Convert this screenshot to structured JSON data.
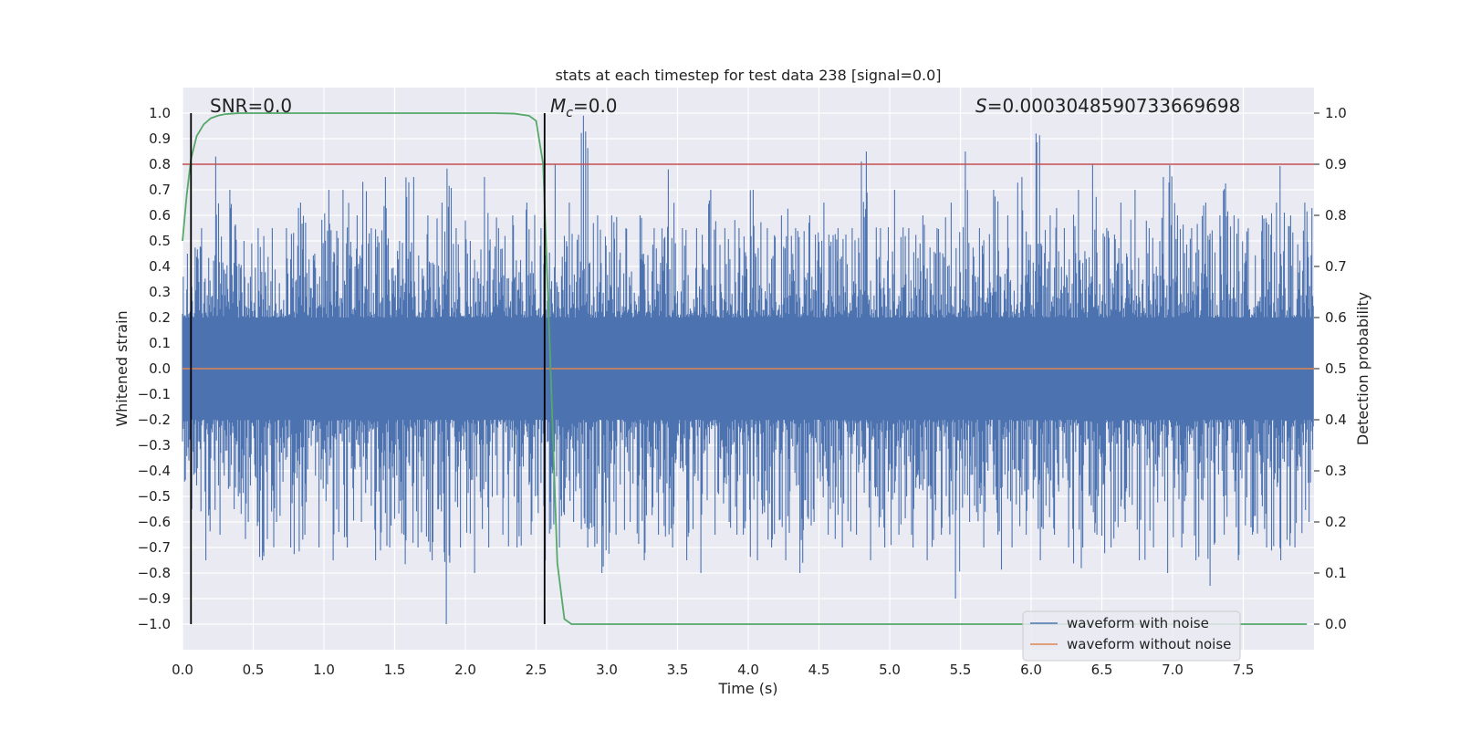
{
  "chart_data": {
    "type": "line",
    "title": "stats at each timestep for test data 238 [signal=0.0]",
    "xlabel": "Time (s)",
    "ylabel": "Whitened strain",
    "y2label": "Detection probability",
    "xlim": [
      0.0,
      8.0
    ],
    "ylim": [
      -1.1,
      1.1
    ],
    "y2lim": [
      -0.05,
      1.05
    ],
    "xticks": [
      0.0,
      0.5,
      1.0,
      1.5,
      2.0,
      2.5,
      3.0,
      3.5,
      4.0,
      4.5,
      5.0,
      5.5,
      6.0,
      6.5,
      7.0,
      7.5
    ],
    "xtick_labels": [
      "0.0",
      "0.5",
      "1.0",
      "1.5",
      "2.0",
      "2.5",
      "3.0",
      "3.5",
      "4.0",
      "4.5",
      "5.0",
      "5.5",
      "6.0",
      "6.5",
      "7.0",
      "7.5"
    ],
    "yticks": [
      1.0,
      0.9,
      0.8,
      0.7,
      0.6,
      0.5,
      0.4,
      0.3,
      0.2,
      0.1,
      0.0,
      -0.1,
      -0.2,
      -0.3,
      -0.4,
      -0.5,
      -0.6,
      -0.7,
      -0.8,
      -0.9,
      -1.0
    ],
    "ytick_labels": [
      "1.0",
      "0.9",
      "0.8",
      "0.7",
      "0.6",
      "0.5",
      "0.4",
      "0.3",
      "0.2",
      "0.1",
      "0.0",
      "−0.1",
      "−0.2",
      "−0.3",
      "−0.4",
      "−0.5",
      "−0.6",
      "−0.7",
      "−0.8",
      "−0.9",
      "−1.0"
    ],
    "y2ticks": [
      1.0,
      0.9,
      0.8,
      0.7,
      0.6,
      0.5,
      0.4,
      0.3,
      0.2,
      0.1,
      0.0
    ],
    "y2tick_labels": [
      "1.0",
      "0.9",
      "0.8",
      "0.7",
      "0.6",
      "0.5",
      "0.4",
      "0.3",
      "0.2",
      "0.1",
      "0.0"
    ],
    "grid": true,
    "legend_position": "bottom-right",
    "annotations": {
      "snr": "SNR=0.0",
      "mc_symbol": "M",
      "mc_sub": "c",
      "mc_value": "=0.0",
      "s_symbol": "S",
      "s_value": "=0.0003048590733669698"
    },
    "series": [
      {
        "name": "waveform with noise",
        "color": "#4c72b0",
        "axis": "left",
        "style": "dense noise, filled band roughly ±0.25 with spikes to ±1.0",
        "duration": 8.0,
        "upper_envelope": [
          0.45,
          0.7,
          0.55,
          0.83,
          0.6,
          0.7,
          0.5,
          0.5,
          0.55,
          0.55,
          0.6,
          0.55,
          0.65,
          0.6,
          0.45,
          0.7,
          0.55,
          0.7,
          0.6,
          0.75,
          0.55,
          0.75,
          0.6,
          0.5,
          0.75,
          0.55,
          0.6,
          0.65,
          0.8,
          0.55,
          0.6,
          0.5,
          0.75,
          0.6,
          0.55,
          0.6,
          0.55,
          0.65,
          0.55,
          0.6,
          0.8,
          0.65,
          0.55,
          0.99,
          0.6,
          0.55,
          0.6,
          0.55,
          0.45,
          0.6,
          0.55,
          0.6,
          0.78,
          0.55,
          0.6,
          0.55,
          0.7,
          0.6,
          0.55,
          0.6,
          0.55,
          0.7,
          0.6,
          0.55,
          0.6,
          0.65,
          0.55,
          0.6,
          0.7,
          0.65,
          0.55,
          0.6,
          0.55,
          0.85,
          0.6,
          0.55,
          0.7,
          0.6,
          0.55,
          0.6,
          0.7,
          0.55,
          0.65,
          0.6,
          0.85,
          0.55,
          0.65,
          0.7,
          0.6,
          0.55,
          0.75,
          0.6,
          0.92,
          0.6,
          0.65,
          0.55,
          0.7,
          0.6,
          0.8,
          0.55,
          0.6,
          0.65,
          0.7,
          0.6,
          0.55,
          0.75,
          0.8,
          0.6,
          0.55,
          0.7,
          0.65,
          0.6,
          0.89,
          0.6,
          0.55,
          0.7,
          0.6,
          0.65,
          0.8,
          0.6,
          0.55,
          0.65
        ],
        "lower_envelope": [
          -0.55,
          -0.65,
          -0.75,
          -0.6,
          -0.65,
          -0.55,
          -0.7,
          -0.6,
          -0.75,
          -0.85,
          -0.6,
          -0.7,
          -0.8,
          -0.65,
          -0.7,
          -0.6,
          -0.75,
          -0.7,
          -0.65,
          -0.6,
          -0.75,
          -0.8,
          -0.7,
          -0.65,
          -0.85,
          -0.7,
          -0.75,
          -0.6,
          -1.0,
          -0.7,
          -0.65,
          -0.8,
          -0.75,
          -0.7,
          -0.65,
          -0.75,
          -0.7,
          -0.65,
          -0.6,
          -0.75,
          -0.7,
          -0.65,
          -0.6,
          -0.7,
          -0.75,
          -0.8,
          -0.65,
          -0.7,
          -0.6,
          -0.75,
          -0.7,
          -0.65,
          -0.7,
          -0.6,
          -0.75,
          -0.8,
          -0.7,
          -0.65,
          -0.6,
          -0.7,
          -0.65,
          -0.75,
          -0.6,
          -0.7,
          -0.65,
          -0.75,
          -0.8,
          -0.7,
          -0.6,
          -0.65,
          -0.75,
          -0.7,
          -0.65,
          -0.6,
          -0.75,
          -0.7,
          -0.95,
          -0.65,
          -0.7,
          -0.6,
          -0.75,
          -0.65,
          -0.7,
          -0.9,
          -0.6,
          -0.75,
          -0.7,
          -0.65,
          -0.85,
          -0.7,
          -0.65,
          -0.6,
          -0.75,
          -0.7,
          -0.65,
          -0.7,
          -0.85,
          -0.7,
          -0.65,
          -0.75,
          -0.7,
          -0.6,
          -0.65,
          -0.75,
          -0.7,
          -0.65,
          -0.8,
          -0.7,
          -0.6,
          -0.75,
          -0.85,
          -0.7,
          -0.65,
          -0.75,
          -0.7,
          -0.65,
          -0.7,
          -0.8,
          -0.75,
          -0.7,
          -0.65,
          -0.6
        ]
      },
      {
        "name": "waveform without noise",
        "color": "#dd8452",
        "axis": "left",
        "x": [
          0.0,
          8.0
        ],
        "y": [
          0.0,
          0.0
        ]
      },
      {
        "name": "",
        "color": "#55a868",
        "axis": "right",
        "x": [
          0.0,
          0.03,
          0.06,
          0.1,
          0.15,
          0.2,
          0.25,
          0.3,
          0.35,
          0.4,
          0.5,
          0.6,
          1.0,
          1.5,
          2.0,
          2.2,
          2.35,
          2.45,
          2.5,
          2.55,
          2.6,
          2.65,
          2.7,
          2.75,
          3.0,
          4.0,
          5.0,
          6.0,
          7.0,
          7.95
        ],
        "y": [
          0.75,
          0.84,
          0.91,
          0.955,
          0.978,
          0.99,
          0.995,
          0.998,
          0.999,
          1.0,
          1.0,
          1.0,
          1.0,
          1.0,
          1.0,
          1.0,
          0.999,
          0.995,
          0.985,
          0.9,
          0.52,
          0.12,
          0.01,
          0.0,
          0.0,
          0.0,
          0.0,
          0.0,
          0.0,
          0.0
        ]
      }
    ],
    "threshold": {
      "color": "#c44e52",
      "axis": "right",
      "value": 0.9
    },
    "markers": {
      "color": "#000000",
      "x": [
        0.06,
        2.56
      ]
    },
    "legend": [
      {
        "label": "waveform with noise",
        "color": "#4c72b0"
      },
      {
        "label": "waveform without noise",
        "color": "#dd8452"
      }
    ]
  }
}
